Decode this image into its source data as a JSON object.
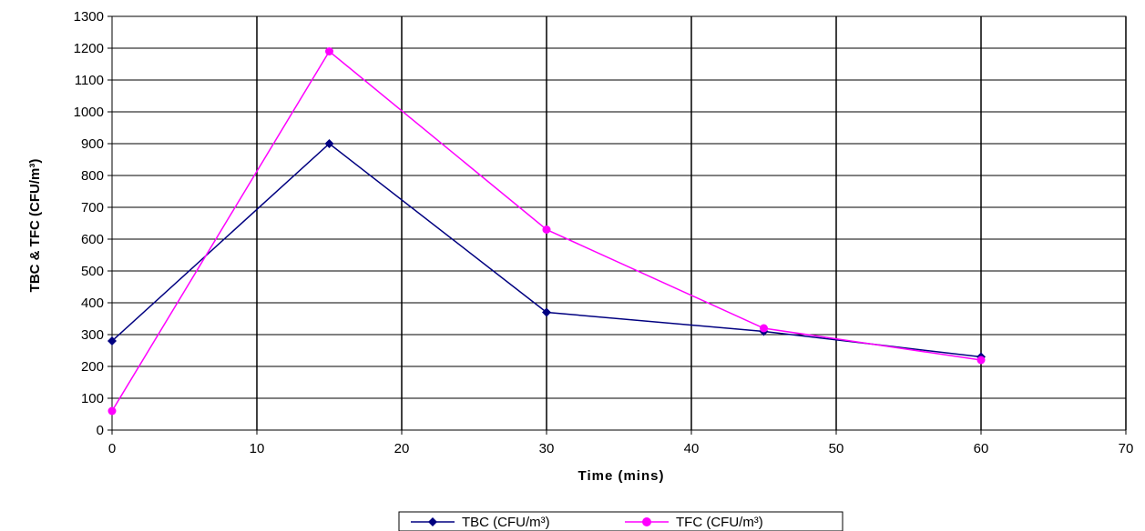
{
  "chart_data": {
    "type": "line",
    "title": "",
    "xlabel": "Time (mins)",
    "ylabel": "TBC & TFC (CFU/m³)",
    "xlim": [
      0,
      70
    ],
    "ylim": [
      0,
      1300
    ],
    "x_ticks": [
      0,
      10,
      20,
      30,
      40,
      50,
      60,
      70
    ],
    "y_ticks": [
      0,
      100,
      200,
      300,
      400,
      500,
      600,
      700,
      800,
      900,
      1000,
      1100,
      1200,
      1300
    ],
    "grid": true,
    "legend_position": "bottom-center",
    "series": [
      {
        "name": "TBC (CFU/m³)",
        "color": "#000080",
        "marker": "diamond",
        "x": [
          0,
          15,
          30,
          45,
          60
        ],
        "y": [
          280,
          900,
          370,
          310,
          230
        ]
      },
      {
        "name": "TFC (CFU/m³)",
        "color": "#ff00ff",
        "marker": "circle",
        "x": [
          0,
          15,
          30,
          45,
          60
        ],
        "y": [
          60,
          1190,
          630,
          320,
          220
        ]
      }
    ]
  }
}
